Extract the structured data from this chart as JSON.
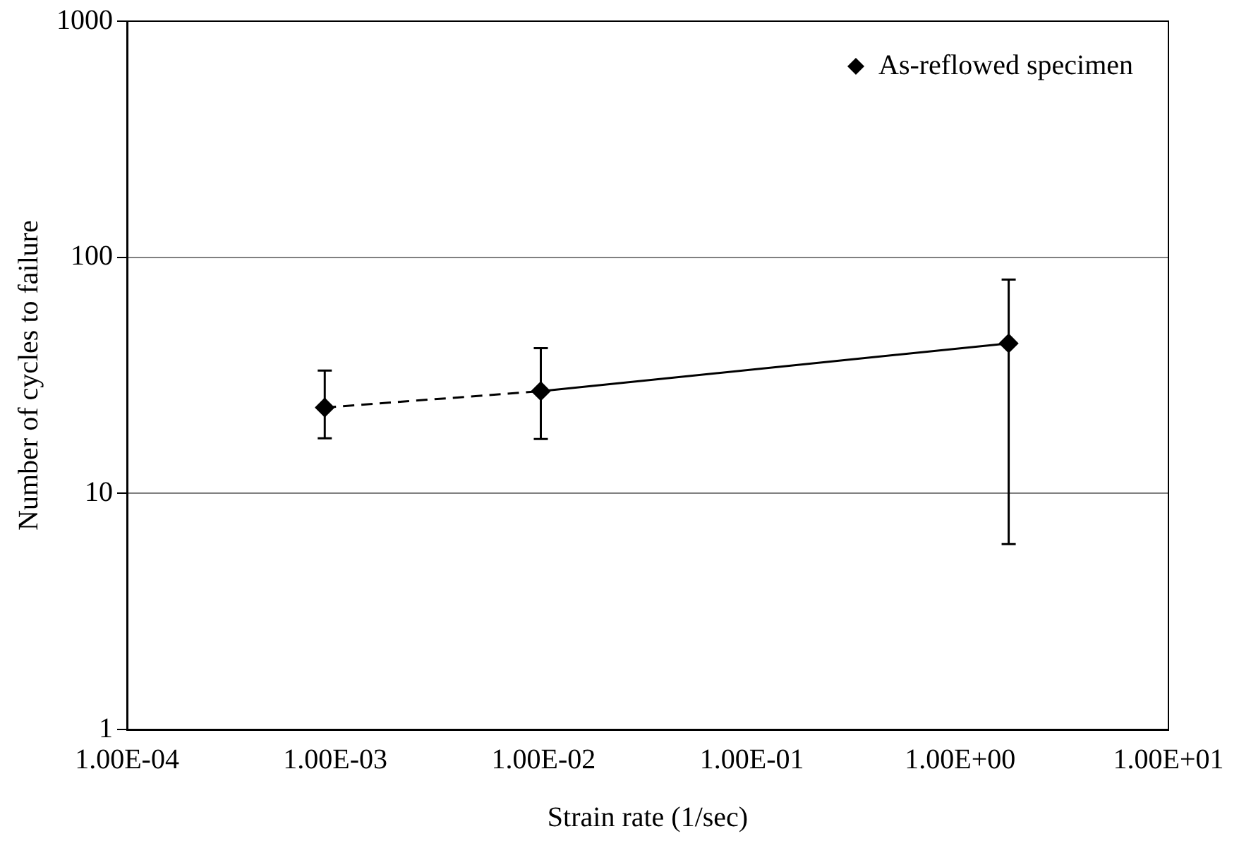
{
  "chart_data": {
    "type": "scatter",
    "xlabel": "Strain rate (1/sec)",
    "ylabel": "Number of cycles to failure",
    "log": "xy",
    "grid": "y",
    "legend": "top right",
    "xlim": [
      0.0001,
      10
    ],
    "xticks": [
      {
        "value": 0.0001,
        "label": "1.00E-04"
      },
      {
        "value": 0.001,
        "label": "1.00E-03"
      },
      {
        "value": 0.01,
        "label": "1.00E-02"
      },
      {
        "value": 0.1,
        "label": "1.00E-01"
      },
      {
        "value": 1,
        "label": "1.00E+00"
      },
      {
        "value": 10,
        "label": "1.00E+01"
      }
    ],
    "ylim": [
      1,
      1000
    ],
    "yticks": [
      1,
      10,
      100,
      1000
    ],
    "series": [
      {
        "name": "As-reflowed specimen",
        "type": "scatter",
        "color": "#000000",
        "marker": "diamond",
        "x": [
          0.00089,
          0.0097,
          1.71
        ],
        "values": [
          23.1,
          27.1,
          43.2
        ],
        "errors": [
          [
            17.1,
            33.1
          ],
          [
            17,
            41.2
          ],
          [
            6.1,
            80.4
          ]
        ]
      },
      {
        "type": "line",
        "color": "#000000",
        "marker": "none",
        "line_style": "dashed",
        "x": [
          0.00089,
          0.0097
        ],
        "values": [
          23.1,
          27.1
        ]
      },
      {
        "type": "line",
        "color": "#000000",
        "marker": "none",
        "line_style": "solid",
        "x": [
          0.0097,
          1.71
        ],
        "values": [
          27.1,
          43.2
        ]
      }
    ]
  }
}
